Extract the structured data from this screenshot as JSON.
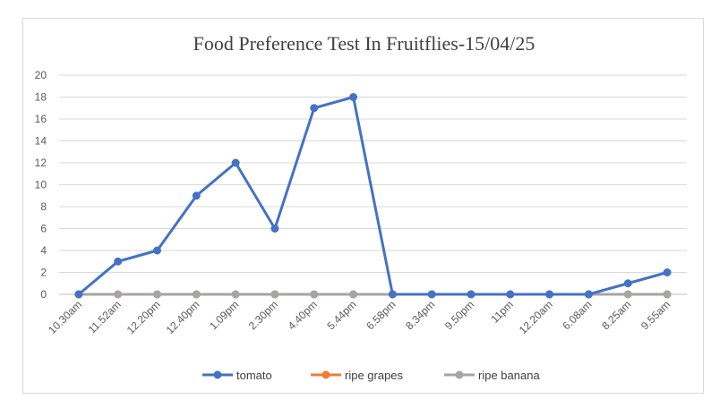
{
  "chart_data": {
    "type": "line",
    "title": "Food Preference Test In Fruitflies-15/04/25",
    "xlabel": "",
    "ylabel": "",
    "ylim": [
      0,
      20
    ],
    "yticks": [
      0,
      2,
      4,
      6,
      8,
      10,
      12,
      14,
      16,
      18,
      20
    ],
    "categories": [
      "10.30am",
      "11.52am",
      "12.20pm",
      "12.40pm",
      "1.09pm",
      "2.30pm",
      "4.40pm",
      "5.44pm",
      "6.58pm",
      "8.34pm",
      "9.50pm",
      "11pm",
      "12.20am",
      "6.08am",
      "8.25am",
      "9.55am"
    ],
    "series": [
      {
        "name": "tomato",
        "color": "#4472c4",
        "values": [
          0,
          3,
          4,
          9,
          12,
          6,
          17,
          18,
          0,
          0,
          0,
          0,
          0,
          0,
          1,
          2
        ]
      },
      {
        "name": "ripe grapes",
        "color": "#ed7d31",
        "values": [
          0,
          0,
          0,
          0,
          0,
          0,
          0,
          0,
          0,
          0,
          0,
          0,
          0,
          0,
          0,
          0
        ]
      },
      {
        "name": "ripe banana",
        "color": "#a5a5a5",
        "values": [
          0,
          0,
          0,
          0,
          0,
          0,
          0,
          0,
          0,
          0,
          0,
          0,
          0,
          0,
          0,
          0
        ]
      }
    ],
    "grid": true,
    "legend_position": "bottom"
  }
}
